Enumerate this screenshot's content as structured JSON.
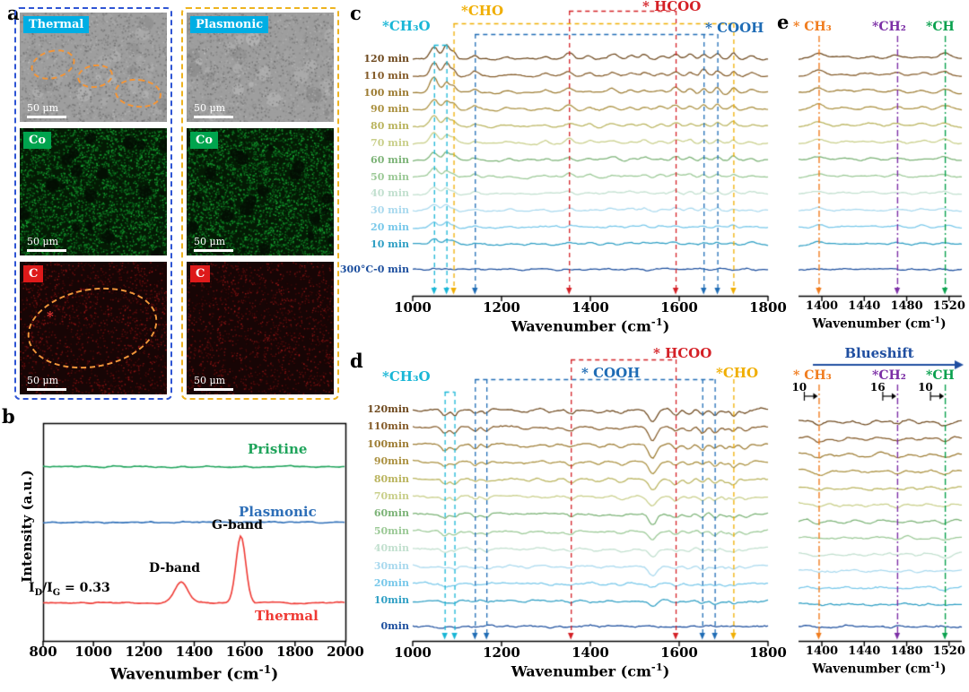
{
  "panel_letters": {
    "a": "a",
    "b": "b",
    "c": "c",
    "d": "d",
    "e": "e"
  },
  "panel_a": {
    "scale_label": "50 μm",
    "asterisk": "*",
    "columns": [
      {
        "border_color": "#2f55d4",
        "rows": [
          {
            "tag": "Thermal",
            "tag_bg": "#00aee4",
            "kind": "sem"
          },
          {
            "tag": "Co",
            "tag_bg": "#00a44e",
            "kind": "co"
          },
          {
            "tag": "C",
            "tag_bg": "#de1a1a",
            "kind": "carbon"
          }
        ]
      },
      {
        "border_color": "#eeb31f",
        "rows": [
          {
            "tag": "Plasmonic",
            "tag_bg": "#00aee4",
            "kind": "sem"
          },
          {
            "tag": "Co",
            "tag_bg": "#00a44e",
            "kind": "co"
          },
          {
            "tag": "C",
            "tag_bg": "#de1a1a",
            "kind": "carbon"
          }
        ]
      }
    ]
  },
  "chart_data": [
    {
      "id": "b_raman",
      "type": "line",
      "xlabel": {
        "pre": "Wavenumber (cm",
        "sup": "-1",
        "post": ")"
      },
      "ylabel": "Intensity (a.u.)",
      "xlim": [
        800,
        2000
      ],
      "xticks": [
        800,
        1000,
        1200,
        1400,
        1600,
        1800,
        2000
      ],
      "annotations": {
        "dband": "D-band",
        "gband": "G-band"
      },
      "ratio": {
        "p1": "I",
        "s1": "D",
        "p2": "/I",
        "s2": "G",
        "p3": " = 0.33"
      },
      "series": [
        {
          "name": "Pristine",
          "color": "#1fa45b",
          "baseline": 0.2,
          "peaks": []
        },
        {
          "name": "Plasmonic",
          "color": "#2e6fb8",
          "baseline": 0.455,
          "peaks": []
        },
        {
          "name": "Thermal",
          "color": "#ef3a34",
          "baseline": 0.825,
          "peaks": [
            {
              "x": 1348,
              "w": 26,
              "h": 0.095
            },
            {
              "x": 1585,
              "w": 19,
              "h": 0.305
            }
          ]
        }
      ]
    },
    {
      "id": "c_drifts",
      "type": "line-stack",
      "xlabel": {
        "pre": "Wavenumber (cm",
        "sup": "-1",
        "post": ")"
      },
      "xlim": [
        1000,
        1800
      ],
      "xticks": [
        1000,
        1200,
        1400,
        1600,
        1800
      ],
      "times": [
        "120 min",
        "110 min",
        "100 min",
        "90 min",
        "80 min",
        "70 min",
        "60 min",
        "50 min",
        "40 min",
        "30 min",
        "20 min",
        "10 min",
        "300°C-0 min"
      ],
      "colors": [
        "#6f4a1f",
        "#855c2a",
        "#9d7c33",
        "#ab9140",
        "#bab45e",
        "#c9cf8a",
        "#7cb377",
        "#9bc996",
        "#c2e0cf",
        "#a9d9ee",
        "#78c8ea",
        "#2f9fc4",
        "#1d4f9e"
      ],
      "peaks": [
        {
          "x": 1048,
          "w": 9,
          "h": 1.0
        },
        {
          "x": 1076,
          "w": 7,
          "h": 0.8
        },
        {
          "x": 1092,
          "w": 6,
          "h": 0.45
        },
        {
          "x": 1140,
          "w": 7,
          "h": 0.3
        },
        {
          "x": 1215,
          "w": 11,
          "h": 0.12
        },
        {
          "x": 1300,
          "w": 8,
          "h": 0.2
        },
        {
          "x": 1352,
          "w": 9,
          "h": 0.4
        },
        {
          "x": 1398,
          "w": 8,
          "h": 0.22
        },
        {
          "x": 1450,
          "w": 10,
          "h": 0.3
        },
        {
          "x": 1492,
          "w": 8,
          "h": 0.26
        },
        {
          "x": 1522,
          "w": 8,
          "h": 0.3
        },
        {
          "x": 1560,
          "w": 8,
          "h": 0.24
        },
        {
          "x": 1592,
          "w": 8,
          "h": 0.42
        },
        {
          "x": 1625,
          "w": 7,
          "h": 0.3
        },
        {
          "x": 1655,
          "w": 6,
          "h": 0.4
        },
        {
          "x": 1686,
          "w": 6,
          "h": 0.42
        },
        {
          "x": 1722,
          "w": 6,
          "h": 0.36
        },
        {
          "x": 1762,
          "w": 8,
          "h": 0.2
        }
      ],
      "groups": [
        {
          "name": "*CH₃O",
          "color": "#18b6d6",
          "xs": [
            1048,
            1076
          ]
        },
        {
          "name": "*CHO",
          "color": "#f0ae00",
          "xs": [
            1092,
            1722
          ]
        },
        {
          "name": "* HCOO",
          "color": "#d42026",
          "xs": [
            1352,
            1592
          ]
        },
        {
          "name": "* COOH",
          "color": "#1f6cb5",
          "xs": [
            1140,
            1655,
            1686
          ]
        }
      ]
    },
    {
      "id": "d_drifts",
      "type": "line-stack",
      "xlabel": {
        "pre": "Wavenumber (cm",
        "sup": "-1",
        "post": ")"
      },
      "xlim": [
        1000,
        1800
      ],
      "xticks": [
        1000,
        1200,
        1400,
        1600,
        1800
      ],
      "times": [
        "120min",
        "110min",
        "100min",
        "90min",
        "80min",
        "70min",
        "60min",
        "50min",
        "40min",
        "30min",
        "20min",
        "10min",
        "0min"
      ],
      "colors": [
        "#6f4a1f",
        "#855c2a",
        "#9d7c33",
        "#ab9140",
        "#bab45e",
        "#c9cf8a",
        "#7cb377",
        "#9bc996",
        "#c2e0cf",
        "#a9d9ee",
        "#78c8ea",
        "#2f9fc4",
        "#1d4f9e"
      ],
      "peaks": [
        {
          "x": 1072,
          "w": 7,
          "h": 0.5
        },
        {
          "x": 1094,
          "w": 6,
          "h": 0.4
        },
        {
          "x": 1140,
          "w": 6,
          "h": 0.32
        },
        {
          "x": 1166,
          "w": 6,
          "h": 0.3
        },
        {
          "x": 1255,
          "w": 10,
          "h": 0.15
        },
        {
          "x": 1310,
          "w": 8,
          "h": 0.18
        },
        {
          "x": 1356,
          "w": 8,
          "h": 0.35
        },
        {
          "x": 1420,
          "w": 10,
          "h": 0.25
        },
        {
          "x": 1470,
          "w": 9,
          "h": 0.3
        },
        {
          "x": 1540,
          "w": 9,
          "h": 1.1
        },
        {
          "x": 1592,
          "w": 7,
          "h": 0.4
        },
        {
          "x": 1622,
          "w": 7,
          "h": 0.32
        },
        {
          "x": 1652,
          "w": 6,
          "h": 0.45
        },
        {
          "x": 1680,
          "w": 6,
          "h": 0.45
        },
        {
          "x": 1705,
          "w": 5,
          "h": 0.3
        },
        {
          "x": 1722,
          "w": 6,
          "h": 0.5
        },
        {
          "x": 1748,
          "w": 7,
          "h": 0.3
        }
      ],
      "groups": [
        {
          "name": "*CH₃O",
          "color": "#18b6d6",
          "xs": [
            1072,
            1094
          ]
        },
        {
          "name": "* COOH",
          "color": "#1f6cb5",
          "xs": [
            1140,
            1166,
            1652,
            1680
          ]
        },
        {
          "name": "* HCOO",
          "color": "#d42026",
          "xs": [
            1356,
            1592
          ]
        },
        {
          "name": "*CHO",
          "color": "#f0ae00",
          "xs": [
            1722
          ]
        }
      ]
    },
    {
      "id": "e_before",
      "type": "line-stack",
      "xlabel": {
        "pre": "Wavenumber (cm",
        "sup": "-1",
        "post": ")"
      },
      "xlim": [
        1378,
        1532
      ],
      "xticks": [
        1400,
        1440,
        1480,
        1520
      ],
      "count": 13,
      "colors": [
        "#6f4a1f",
        "#855c2a",
        "#9d7c33",
        "#ab9140",
        "#bab45e",
        "#c9cf8a",
        "#7cb377",
        "#9bc996",
        "#c2e0cf",
        "#a9d9ee",
        "#78c8ea",
        "#2f9fc4",
        "#1d4f9e"
      ],
      "peaks": [
        {
          "x": 1397,
          "w": 6,
          "h": 0.6
        },
        {
          "x": 1420,
          "w": 7,
          "h": 0.25
        },
        {
          "x": 1445,
          "w": 7,
          "h": 0.3
        },
        {
          "x": 1471,
          "w": 6,
          "h": 0.4
        },
        {
          "x": 1495,
          "w": 6,
          "h": 0.28
        },
        {
          "x": 1516,
          "w": 5,
          "h": 0.5
        }
      ],
      "markers": [
        {
          "name": "* CH₃",
          "color": "#f07c1e",
          "x": 1397
        },
        {
          "name": "*CH₂",
          "color": "#7c2fa6",
          "x": 1471
        },
        {
          "name": "*CH",
          "color": "#0aa14e",
          "x": 1516
        }
      ]
    },
    {
      "id": "e_after",
      "type": "line-stack",
      "xlabel": {
        "pre": "Wavenumber (cm",
        "sup": "-1",
        "post": ")"
      },
      "xlim": [
        1378,
        1532
      ],
      "xticks": [
        1400,
        1440,
        1480,
        1520
      ],
      "count": 13,
      "colors": [
        "#6f4a1f",
        "#855c2a",
        "#9d7c33",
        "#ab9140",
        "#bab45e",
        "#c9cf8a",
        "#7cb377",
        "#9bc996",
        "#c2e0cf",
        "#a9d9ee",
        "#78c8ea",
        "#2f9fc4",
        "#1d4f9e"
      ],
      "peaks": [
        {
          "x": 1397,
          "w": 5,
          "h": 0.55
        },
        {
          "x": 1418,
          "w": 6,
          "h": 0.3
        },
        {
          "x": 1442,
          "w": 6,
          "h": 0.35
        },
        {
          "x": 1471,
          "w": 5,
          "h": 0.45
        },
        {
          "x": 1492,
          "w": 5,
          "h": 0.3
        },
        {
          "x": 1516,
          "w": 5,
          "h": 0.55
        }
      ],
      "markers": [
        {
          "name": "* CH₃",
          "color": "#f07c1e",
          "x": 1397
        },
        {
          "name": "*CH₂",
          "color": "#7c2fa6",
          "x": 1471
        },
        {
          "name": "*CH",
          "color": "#0aa14e",
          "x": 1516
        }
      ],
      "blueshift": "Blueshift",
      "blueshift_color": "#1f4ea0",
      "shifts": [
        "10",
        "16",
        "10"
      ]
    }
  ]
}
